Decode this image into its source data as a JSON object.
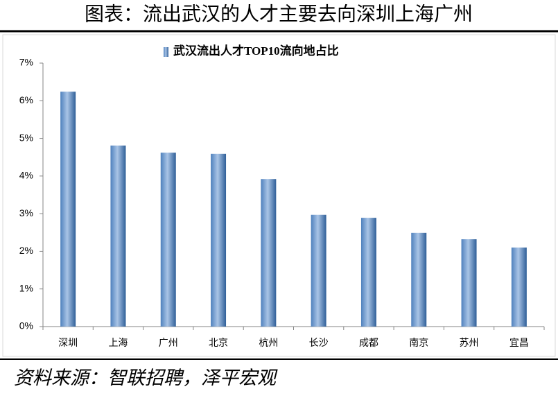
{
  "chart_data": {
    "type": "bar",
    "title": "图表：流出武汉的人才主要去向深圳上海广州",
    "source": "资料来源：智联招聘，泽平宏观",
    "categories": [
      "深圳",
      "上海",
      "广州",
      "北京",
      "杭州",
      "长沙",
      "成都",
      "南京",
      "苏州",
      "宜昌"
    ],
    "series": [
      {
        "name": "武汉流出人才TOP10流向地占比",
        "color": "#4f81bd",
        "values": [
          6.24,
          4.81,
          4.62,
          4.59,
          3.92,
          2.97,
          2.89,
          2.49,
          2.32,
          2.1
        ]
      }
    ],
    "ylim": [
      0,
      7
    ],
    "yticks": [
      {
        "value": 0,
        "label": "0%"
      },
      {
        "value": 1,
        "label": "1%"
      },
      {
        "value": 2,
        "label": "2%"
      },
      {
        "value": 3,
        "label": "3%"
      },
      {
        "value": 4,
        "label": "4%"
      },
      {
        "value": 5,
        "label": "5%"
      },
      {
        "value": 6,
        "label": "6%"
      },
      {
        "value": 7,
        "label": "7%"
      }
    ],
    "grid": false,
    "legend": "top"
  }
}
